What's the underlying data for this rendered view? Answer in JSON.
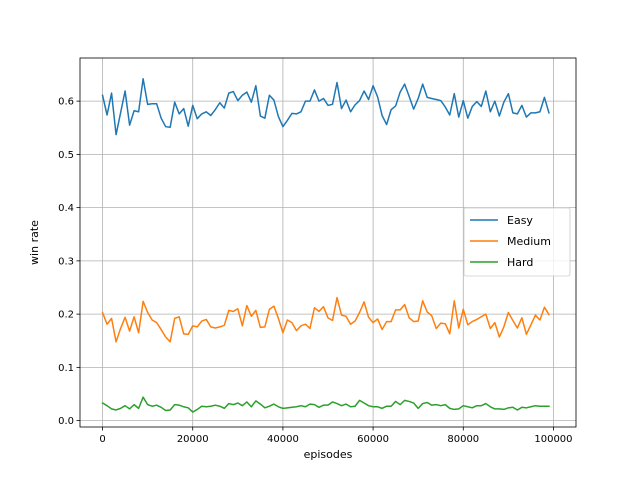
{
  "chart_data": {
    "type": "line",
    "xlabel": "episodes",
    "ylabel": "win rate",
    "xlim": [
      -5000,
      105000
    ],
    "ylim": [
      -0.012,
      0.681
    ],
    "x_ticks": [
      0,
      20000,
      40000,
      60000,
      80000,
      100000
    ],
    "y_ticks": [
      0.0,
      0.1,
      0.2,
      0.3,
      0.4,
      0.5,
      0.6
    ],
    "grid": true,
    "legend_position": "center-right",
    "x": [
      0,
      1000,
      2000,
      3000,
      4000,
      5000,
      6000,
      7000,
      8000,
      9000,
      10000,
      11000,
      12000,
      13000,
      14000,
      15000,
      16000,
      17000,
      18000,
      19000,
      20000,
      21000,
      22000,
      23000,
      24000,
      25000,
      26000,
      27000,
      28000,
      29000,
      30000,
      31000,
      32000,
      33000,
      34000,
      35000,
      36000,
      37000,
      38000,
      39000,
      40000,
      41000,
      42000,
      43000,
      44000,
      45000,
      46000,
      47000,
      48000,
      49000,
      50000,
      51000,
      52000,
      53000,
      54000,
      55000,
      56000,
      57000,
      58000,
      59000,
      60000,
      61000,
      62000,
      63000,
      64000,
      65000,
      66000,
      67000,
      68000,
      69000,
      70000,
      71000,
      72000,
      73000,
      74000,
      75000,
      76000,
      77000,
      78000,
      79000,
      80000,
      81000,
      82000,
      83000,
      84000,
      85000,
      86000,
      87000,
      88000,
      89000,
      90000,
      91000,
      92000,
      93000,
      94000,
      95000,
      96000,
      97000,
      98000,
      99000
    ],
    "series": [
      {
        "name": "Easy",
        "color": "#1f77b4",
        "values": [
          0.611,
          0.574,
          0.615,
          0.537,
          0.578,
          0.619,
          0.555,
          0.582,
          0.58,
          0.642,
          0.594,
          0.595,
          0.595,
          0.568,
          0.552,
          0.551,
          0.598,
          0.576,
          0.586,
          0.553,
          0.592,
          0.567,
          0.576,
          0.58,
          0.573,
          0.584,
          0.597,
          0.587,
          0.615,
          0.618,
          0.601,
          0.611,
          0.617,
          0.598,
          0.629,
          0.572,
          0.568,
          0.611,
          0.602,
          0.571,
          0.552,
          0.564,
          0.577,
          0.576,
          0.58,
          0.6,
          0.6,
          0.621,
          0.6,
          0.605,
          0.592,
          0.594,
          0.635,
          0.586,
          0.602,
          0.58,
          0.593,
          0.601,
          0.619,
          0.603,
          0.629,
          0.608,
          0.573,
          0.556,
          0.584,
          0.591,
          0.617,
          0.632,
          0.609,
          0.585,
          0.605,
          0.632,
          0.607,
          0.605,
          0.603,
          0.601,
          0.589,
          0.574,
          0.614,
          0.57,
          0.601,
          0.568,
          0.59,
          0.599,
          0.59,
          0.619,
          0.58,
          0.6,
          0.572,
          0.598,
          0.614,
          0.578,
          0.576,
          0.592,
          0.57,
          0.578,
          0.578,
          0.58,
          0.607,
          0.578
        ]
      },
      {
        "name": "Medium",
        "color": "#ff7f0e",
        "values": [
          0.203,
          0.181,
          0.192,
          0.148,
          0.173,
          0.194,
          0.168,
          0.195,
          0.165,
          0.224,
          0.203,
          0.189,
          0.184,
          0.171,
          0.157,
          0.148,
          0.192,
          0.195,
          0.163,
          0.162,
          0.178,
          0.176,
          0.187,
          0.19,
          0.176,
          0.174,
          0.176,
          0.179,
          0.207,
          0.205,
          0.21,
          0.178,
          0.216,
          0.196,
          0.207,
          0.175,
          0.176,
          0.209,
          0.215,
          0.192,
          0.165,
          0.189,
          0.184,
          0.169,
          0.178,
          0.181,
          0.173,
          0.212,
          0.205,
          0.214,
          0.193,
          0.188,
          0.231,
          0.198,
          0.196,
          0.181,
          0.187,
          0.203,
          0.223,
          0.194,
          0.184,
          0.191,
          0.171,
          0.186,
          0.186,
          0.208,
          0.208,
          0.218,
          0.193,
          0.186,
          0.187,
          0.225,
          0.204,
          0.197,
          0.173,
          0.183,
          0.182,
          0.163,
          0.225,
          0.174,
          0.209,
          0.18,
          0.186,
          0.19,
          0.195,
          0.2,
          0.173,
          0.184,
          0.157,
          0.176,
          0.203,
          0.188,
          0.174,
          0.193,
          0.162,
          0.18,
          0.198,
          0.189,
          0.213,
          0.199
        ]
      },
      {
        "name": "Hard",
        "color": "#2ca02c",
        "values": [
          0.033,
          0.028,
          0.022,
          0.02,
          0.023,
          0.028,
          0.022,
          0.03,
          0.023,
          0.044,
          0.03,
          0.027,
          0.029,
          0.025,
          0.019,
          0.02,
          0.03,
          0.029,
          0.026,
          0.024,
          0.016,
          0.021,
          0.027,
          0.026,
          0.027,
          0.029,
          0.027,
          0.023,
          0.032,
          0.03,
          0.033,
          0.028,
          0.035,
          0.026,
          0.037,
          0.031,
          0.024,
          0.027,
          0.031,
          0.026,
          0.023,
          0.024,
          0.025,
          0.026,
          0.028,
          0.026,
          0.031,
          0.03,
          0.025,
          0.029,
          0.029,
          0.035,
          0.032,
          0.028,
          0.031,
          0.026,
          0.027,
          0.038,
          0.033,
          0.028,
          0.026,
          0.026,
          0.023,
          0.027,
          0.027,
          0.036,
          0.03,
          0.038,
          0.036,
          0.033,
          0.023,
          0.032,
          0.034,
          0.029,
          0.03,
          0.028,
          0.03,
          0.023,
          0.021,
          0.022,
          0.028,
          0.026,
          0.024,
          0.028,
          0.028,
          0.032,
          0.026,
          0.022,
          0.022,
          0.021,
          0.024,
          0.025,
          0.02,
          0.025,
          0.024,
          0.026,
          0.028,
          0.027,
          0.027,
          0.027
        ]
      }
    ]
  }
}
